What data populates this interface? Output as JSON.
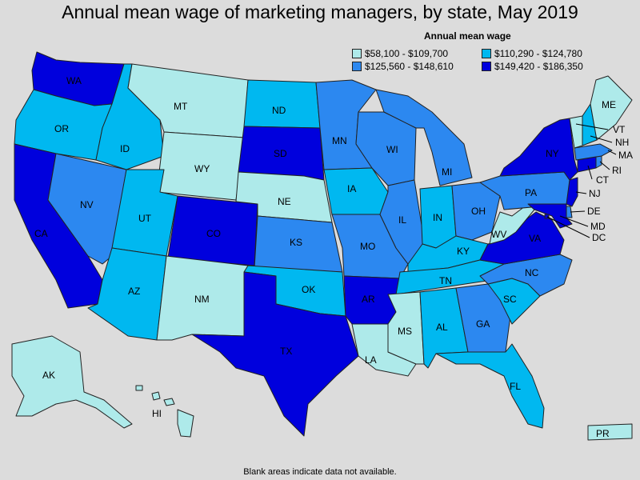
{
  "title": "Annual mean wage of marketing managers, by state, May 2019",
  "legend": {
    "title": "Annual mean wage",
    "items": [
      {
        "label": "$58,100 - $109,700",
        "color": "#aeeaea"
      },
      {
        "label": "$110,290 - $124,780",
        "color": "#00b8f0"
      },
      {
        "label": "$125,560 - $148,610",
        "color": "#2c88f0"
      },
      {
        "label": "$149,420 - $186,350",
        "color": "#0000dd"
      }
    ]
  },
  "footnote": "Blank areas indicate data not available.",
  "states": {
    "WA": {
      "label": "WA",
      "class": 4
    },
    "OR": {
      "label": "OR",
      "class": 2
    },
    "CA": {
      "label": "CA",
      "class": 4
    },
    "NV": {
      "label": "NV",
      "class": 3
    },
    "ID": {
      "label": "ID",
      "class": 2
    },
    "MT": {
      "label": "MT",
      "class": 1
    },
    "WY": {
      "label": "WY",
      "class": 1
    },
    "UT": {
      "label": "UT",
      "class": 2
    },
    "AZ": {
      "label": "AZ",
      "class": 2
    },
    "CO": {
      "label": "CO",
      "class": 4
    },
    "NM": {
      "label": "NM",
      "class": 1
    },
    "ND": {
      "label": "ND",
      "class": 2
    },
    "SD": {
      "label": "SD",
      "class": 4
    },
    "NE": {
      "label": "NE",
      "class": 1
    },
    "KS": {
      "label": "KS",
      "class": 3
    },
    "OK": {
      "label": "OK",
      "class": 2
    },
    "TX": {
      "label": "TX",
      "class": 4
    },
    "MN": {
      "label": "MN",
      "class": 3
    },
    "IA": {
      "label": "IA",
      "class": 2
    },
    "MO": {
      "label": "MO",
      "class": 3
    },
    "AR": {
      "label": "AR",
      "class": 4
    },
    "LA": {
      "label": "LA",
      "class": 1
    },
    "WI": {
      "label": "WI",
      "class": 3
    },
    "IL": {
      "label": "IL",
      "class": 3
    },
    "MI": {
      "label": "MI",
      "class": 3
    },
    "IN": {
      "label": "IN",
      "class": 2
    },
    "OH": {
      "label": "OH",
      "class": 3
    },
    "KY": {
      "label": "KY",
      "class": 2
    },
    "TN": {
      "label": "TN",
      "class": 2
    },
    "MS": {
      "label": "MS",
      "class": 1
    },
    "AL": {
      "label": "AL",
      "class": 2
    },
    "GA": {
      "label": "GA",
      "class": 3
    },
    "FL": {
      "label": "FL",
      "class": 2
    },
    "SC": {
      "label": "SC",
      "class": 2
    },
    "NC": {
      "label": "NC",
      "class": 3
    },
    "VA": {
      "label": "VA",
      "class": 4
    },
    "WV": {
      "label": "WV",
      "class": 1
    },
    "PA": {
      "label": "PA",
      "class": 3
    },
    "NY": {
      "label": "NY",
      "class": 4
    },
    "NJ": {
      "label": "NJ",
      "class": 4
    },
    "DE": {
      "label": "DE",
      "class": 3
    },
    "MD": {
      "label": "MD",
      "class": 4
    },
    "DC": {
      "label": "DC",
      "class": 4
    },
    "CT": {
      "label": "CT",
      "class": 4
    },
    "RI": {
      "label": "RI",
      "class": 3
    },
    "MA": {
      "label": "MA",
      "class": 3
    },
    "VT": {
      "label": "VT",
      "class": 1
    },
    "NH": {
      "label": "NH",
      "class": 2
    },
    "ME": {
      "label": "ME",
      "class": 1
    },
    "AK": {
      "label": "AK",
      "class": 1
    },
    "HI": {
      "label": "HI",
      "class": 1
    },
    "PR": {
      "label": "PR",
      "class": 1
    }
  }
}
